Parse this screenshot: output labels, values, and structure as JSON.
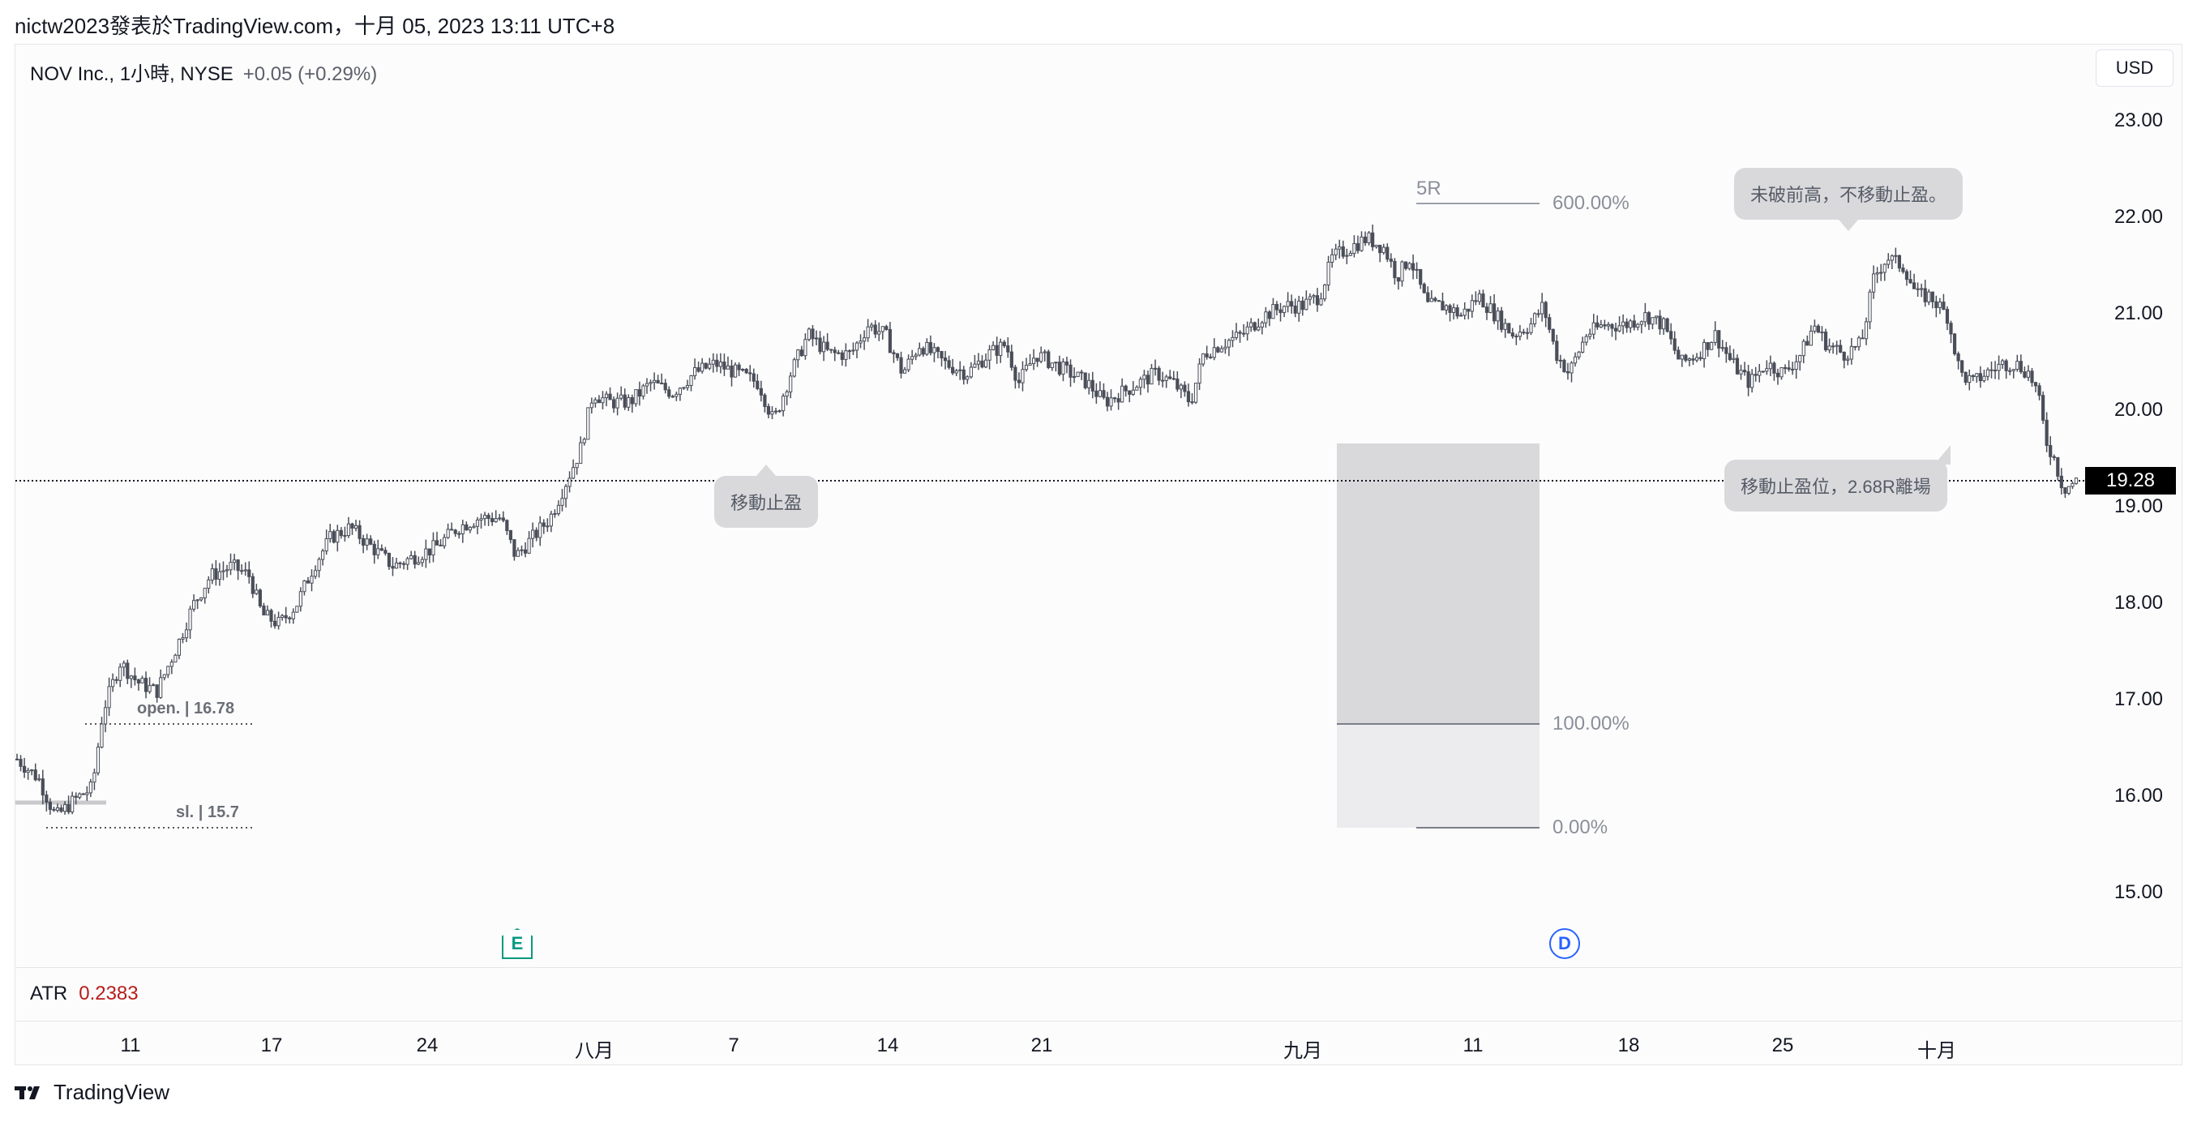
{
  "header": {
    "text": "nictw2023發表於TradingView.com，十月 05, 2023 13:11 UTC+8"
  },
  "legend": {
    "symbol": "NOV Inc., 1小時, NYSE",
    "change": "+0.05 (+0.29%)"
  },
  "currency": "USD",
  "price_axis": [
    "23.00",
    "22.00",
    "21.00",
    "20.00",
    "19.00",
    "18.00",
    "17.00",
    "16.00",
    "15.00"
  ],
  "last_price": "19.28",
  "time_axis": [
    "11",
    "17",
    "24",
    "八月",
    "7",
    "14",
    "21",
    "九月",
    "11",
    "18",
    "25",
    "十月"
  ],
  "indicator": {
    "name": "ATR",
    "value": "0.2383"
  },
  "annotations": {
    "bubble_trailing": "移動止盈",
    "bubble_no_high": "未破前高，不移動止盈。",
    "bubble_exit": "移動止盈位，2.68R離場",
    "open_label": "open. | 16.78",
    "sl_label": "sl. | 15.7",
    "five_r": "5R",
    "fib_600": "600.00%",
    "fib_100": "100.00%",
    "fib_0": "0.00%"
  },
  "markers": {
    "earnings": "E",
    "dividend": "D"
  },
  "footer": {
    "brand": "TradingView"
  },
  "colors": {
    "candle": "#4a4e59",
    "last_price_bg": "#000000",
    "atr_value": "#b71c1c",
    "earnings": "#089981",
    "dividend": "#2962ff",
    "risk_zone": "#d9d9db",
    "loss_zone": "#ececee"
  },
  "chart_data": {
    "type": "candlestick",
    "title": "NOV Inc., 1小時, NYSE",
    "interval": "1h",
    "x_ticks": [
      "11",
      "17",
      "24",
      "八月",
      "7",
      "14",
      "21",
      "九月",
      "11",
      "18",
      "25",
      "十月"
    ],
    "ylim": [
      14.3,
      23.7
    ],
    "y_ticks": [
      15,
      16,
      17,
      18,
      19,
      20,
      21,
      22,
      23
    ],
    "grid": false,
    "last_price": 19.28,
    "levels": {
      "open": 16.78,
      "sl": 15.7,
      "fib_0": 15.7,
      "fib_100": 16.78,
      "fib_600": 22.18
    },
    "path": [
      [
        0.0,
        16.4
      ],
      [
        0.01,
        16.2
      ],
      [
        0.018,
        15.8
      ],
      [
        0.028,
        16.0
      ],
      [
        0.035,
        16.1
      ],
      [
        0.04,
        16.9
      ],
      [
        0.048,
        17.4
      ],
      [
        0.056,
        17.2
      ],
      [
        0.065,
        17.1
      ],
      [
        0.075,
        17.6
      ],
      [
        0.082,
        18.0
      ],
      [
        0.09,
        18.3
      ],
      [
        0.1,
        18.4
      ],
      [
        0.108,
        18.3
      ],
      [
        0.114,
        17.9
      ],
      [
        0.122,
        17.8
      ],
      [
        0.13,
        18.0
      ],
      [
        0.138,
        18.4
      ],
      [
        0.146,
        18.7
      ],
      [
        0.155,
        18.8
      ],
      [
        0.165,
        18.6
      ],
      [
        0.175,
        18.4
      ],
      [
        0.185,
        18.5
      ],
      [
        0.195,
        18.6
      ],
      [
        0.205,
        18.8
      ],
      [
        0.215,
        18.9
      ],
      [
        0.225,
        18.9
      ],
      [
        0.232,
        18.5
      ],
      [
        0.24,
        18.7
      ],
      [
        0.248,
        18.9
      ],
      [
        0.256,
        19.3
      ],
      [
        0.262,
        19.6
      ],
      [
        0.268,
        20.2
      ],
      [
        0.275,
        20.1
      ],
      [
        0.285,
        20.1
      ],
      [
        0.295,
        20.3
      ],
      [
        0.305,
        20.2
      ],
      [
        0.315,
        20.4
      ],
      [
        0.325,
        20.5
      ],
      [
        0.335,
        20.4
      ],
      [
        0.345,
        20.3
      ],
      [
        0.352,
        19.9
      ],
      [
        0.36,
        20.4
      ],
      [
        0.368,
        20.8
      ],
      [
        0.378,
        20.6
      ],
      [
        0.388,
        20.6
      ],
      [
        0.396,
        20.9
      ],
      [
        0.404,
        20.8
      ],
      [
        0.412,
        20.4
      ],
      [
        0.42,
        20.7
      ],
      [
        0.432,
        20.5
      ],
      [
        0.442,
        20.4
      ],
      [
        0.452,
        20.6
      ],
      [
        0.46,
        20.7
      ],
      [
        0.466,
        20.3
      ],
      [
        0.474,
        20.6
      ],
      [
        0.482,
        20.5
      ],
      [
        0.49,
        20.4
      ],
      [
        0.498,
        20.3
      ],
      [
        0.506,
        20.1
      ],
      [
        0.514,
        20.2
      ],
      [
        0.522,
        20.3
      ],
      [
        0.53,
        20.4
      ],
      [
        0.538,
        20.3
      ],
      [
        0.546,
        20.1
      ],
      [
        0.552,
        20.6
      ],
      [
        0.56,
        20.7
      ],
      [
        0.57,
        20.8
      ],
      [
        0.58,
        21.0
      ],
      [
        0.59,
        21.1
      ],
      [
        0.598,
        21.1
      ],
      [
        0.606,
        21.2
      ],
      [
        0.612,
        21.6
      ],
      [
        0.62,
        21.7
      ],
      [
        0.628,
        21.8
      ],
      [
        0.636,
        21.7
      ],
      [
        0.642,
        21.4
      ],
      [
        0.648,
        21.6
      ],
      [
        0.656,
        21.1
      ],
      [
        0.664,
        21.1
      ],
      [
        0.672,
        21.0
      ],
      [
        0.68,
        21.2
      ],
      [
        0.688,
        21.0
      ],
      [
        0.696,
        20.8
      ],
      [
        0.704,
        20.9
      ],
      [
        0.71,
        21.1
      ],
      [
        0.716,
        20.6
      ],
      [
        0.722,
        20.4
      ],
      [
        0.73,
        20.8
      ],
      [
        0.738,
        20.9
      ],
      [
        0.748,
        20.9
      ],
      [
        0.758,
        21.0
      ],
      [
        0.766,
        20.9
      ],
      [
        0.774,
        20.5
      ],
      [
        0.782,
        20.6
      ],
      [
        0.79,
        20.8
      ],
      [
        0.798,
        20.5
      ],
      [
        0.806,
        20.3
      ],
      [
        0.814,
        20.5
      ],
      [
        0.822,
        20.4
      ],
      [
        0.83,
        20.6
      ],
      [
        0.836,
        20.9
      ],
      [
        0.842,
        20.7
      ],
      [
        0.85,
        20.6
      ],
      [
        0.858,
        20.7
      ],
      [
        0.864,
        21.4
      ],
      [
        0.87,
        21.6
      ],
      [
        0.878,
        21.5
      ],
      [
        0.884,
        21.2
      ],
      [
        0.89,
        21.2
      ],
      [
        0.898,
        21.0
      ],
      [
        0.904,
        20.4
      ],
      [
        0.91,
        20.3
      ],
      [
        0.916,
        20.4
      ],
      [
        0.924,
        20.5
      ],
      [
        0.93,
        20.5
      ],
      [
        0.936,
        20.4
      ],
      [
        0.94,
        20.2
      ],
      [
        0.944,
        19.7
      ],
      [
        0.948,
        19.5
      ],
      [
        0.952,
        19.2
      ],
      [
        0.958,
        19.28
      ]
    ]
  }
}
